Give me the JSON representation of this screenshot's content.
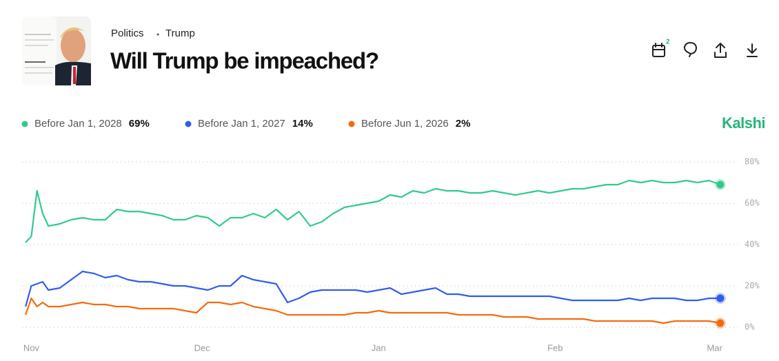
{
  "header": {
    "breadcrumb": [
      "Politics",
      "Trump"
    ],
    "title": "Will Trump be impeached?",
    "calendar_badge": 2
  },
  "brand": "Kalshi",
  "chart_data": {
    "type": "line",
    "x": [
      -1,
      0,
      1,
      2,
      3,
      5,
      7,
      9,
      11,
      13,
      15,
      17,
      19,
      21,
      23,
      25,
      27,
      29,
      31,
      33,
      35,
      37,
      39,
      41,
      43,
      45,
      47,
      49,
      51,
      53,
      55,
      57,
      59,
      61,
      63,
      65,
      67,
      69,
      71,
      73,
      75,
      77,
      79,
      81,
      83,
      85,
      87,
      89,
      91,
      93,
      95,
      97,
      99,
      101,
      103,
      105,
      107,
      109,
      111,
      113,
      115,
      117,
      119,
      121
    ],
    "xlim": [
      -1.5,
      121.5
    ],
    "xticks": [
      {
        "value": 0,
        "label": "Nov"
      },
      {
        "value": 30,
        "label": "Dec"
      },
      {
        "value": 61,
        "label": "Jan"
      },
      {
        "value": 92,
        "label": "Feb"
      },
      {
        "value": 120,
        "label": "Mar"
      }
    ],
    "ylim": [
      -5,
      83
    ],
    "yticks": [
      {
        "value": 0,
        "label": "0%"
      },
      {
        "value": 20,
        "label": "20%"
      },
      {
        "value": 40,
        "label": "40%"
      },
      {
        "value": 60,
        "label": "60%"
      },
      {
        "value": 80,
        "label": "80%"
      }
    ],
    "grid": true,
    "series": [
      {
        "name": "Before Jan 1, 2028",
        "color": "#2fcb8b",
        "value_label": "69%",
        "values": [
          41,
          44,
          66,
          55,
          49,
          50,
          52,
          53,
          52,
          52,
          57,
          56,
          56,
          55,
          54,
          52,
          52,
          54,
          53,
          49,
          53,
          53,
          55,
          53,
          57,
          52,
          56,
          49,
          51,
          55,
          58,
          59,
          60,
          61,
          64,
          63,
          66,
          65,
          67,
          66,
          66,
          65,
          65,
          66,
          65,
          64,
          65,
          66,
          65,
          66,
          67,
          67,
          68,
          69,
          69,
          71,
          70,
          71,
          70,
          70,
          71,
          70,
          71,
          69
        ]
      },
      {
        "name": "Before Jan 1, 2027",
        "color": "#2f5df0",
        "value_label": "14%",
        "values": [
          10,
          20,
          21,
          22,
          18,
          19,
          23,
          27,
          26,
          24,
          25,
          23,
          22,
          22,
          21,
          20,
          20,
          19,
          18,
          20,
          20,
          25,
          23,
          22,
          21,
          12,
          14,
          17,
          18,
          18,
          18,
          18,
          17,
          18,
          19,
          16,
          17,
          18,
          19,
          16,
          16,
          15,
          15,
          15,
          15,
          15,
          15,
          15,
          15,
          14,
          13,
          13,
          13,
          13,
          13,
          14,
          13,
          14,
          14,
          14,
          13,
          13,
          14,
          14
        ]
      },
      {
        "name": "Before Jun 1, 2026",
        "color": "#f56a0d",
        "value_label": "2%",
        "values": [
          6,
          14,
          10,
          12,
          10,
          10,
          11,
          12,
          11,
          11,
          10,
          10,
          9,
          9,
          9,
          9,
          8,
          7,
          12,
          12,
          11,
          12,
          10,
          9,
          8,
          6,
          6,
          6,
          6,
          6,
          6,
          7,
          7,
          8,
          7,
          7,
          7,
          7,
          7,
          7,
          6,
          6,
          6,
          6,
          5,
          5,
          5,
          4,
          4,
          4,
          4,
          4,
          3,
          3,
          3,
          3,
          3,
          3,
          2,
          3,
          3,
          3,
          3,
          2
        ]
      }
    ]
  }
}
